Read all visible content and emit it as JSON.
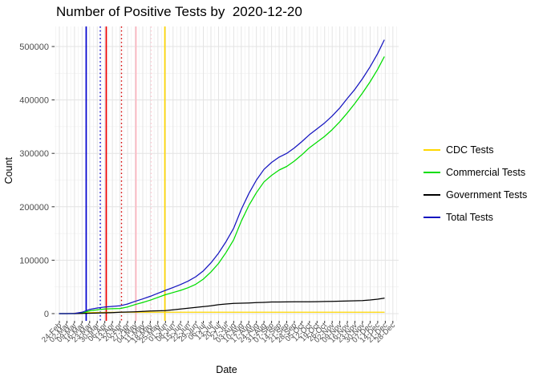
{
  "title": "Number of Positive Tests by  2020-12-20",
  "axes": {
    "x_label": "Date",
    "y_label": "Count",
    "y_ticks": [
      "0",
      "100000",
      "200000",
      "300000",
      "400000",
      "500000"
    ]
  },
  "legend": {
    "position": "right",
    "items": [
      {
        "label": "CDC Tests",
        "color": "#FFD700"
      },
      {
        "label": "Commercial Tests",
        "color": "#00DD00"
      },
      {
        "label": "Government Tests",
        "color": "#000000"
      },
      {
        "label": "Total Tests",
        "color": "#1515C0"
      }
    ]
  },
  "chart_data": {
    "type": "line",
    "title": "Number of Positive Tests by  2020-12-20",
    "xlabel": "Date",
    "ylabel": "Count",
    "ylim": [
      0,
      540000
    ],
    "grid": true,
    "legend_position": "right",
    "categories": [
      "24-Feb",
      "02-Mar",
      "09-Mar",
      "16-Mar",
      "23-Mar",
      "30-Mar",
      "06-Apr",
      "13-Apr",
      "20-Apr",
      "27-Apr",
      "04-May",
      "11-May",
      "18-May",
      "25-May",
      "01-Jun",
      "08-Jun",
      "15-Jun",
      "22-Jun",
      "29-Jun",
      "06-Jul",
      "13-Jul",
      "20-Jul",
      "27-Jul",
      "03-Aug",
      "10-Aug",
      "17-Aug",
      "24-Aug",
      "31-Aug",
      "07-Sep",
      "14-Sep",
      "21-Sep",
      "28-Sep",
      "05-Oct",
      "12-Oct",
      "19-Oct",
      "26-Oct",
      "02-Nov",
      "09-Nov",
      "16-Nov",
      "23-Nov",
      "30-Nov",
      "07-Dec",
      "14-Dec",
      "21-Dec",
      "28-Dec"
    ],
    "x_weeks": [
      0,
      1,
      2,
      3,
      4,
      5,
      6,
      7,
      8,
      9,
      10,
      11,
      12,
      13,
      14,
      15,
      16,
      17,
      18,
      19,
      20,
      21,
      22,
      23,
      24,
      25,
      26,
      27,
      28,
      29,
      30,
      31,
      32,
      33,
      34,
      35,
      36,
      37,
      38,
      39,
      40,
      41,
      42,
      42.86
    ],
    "series": [
      {
        "name": "CDC Tests",
        "color": "#FFD700",
        "values": [
          0,
          0,
          800,
          1500,
          2000,
          2200,
          2300,
          2400,
          2400,
          2500,
          2500,
          2500,
          2500,
          2500,
          2500,
          2500,
          2500,
          2500,
          2500,
          2500,
          2500,
          2500,
          2500,
          2500,
          2500,
          2500,
          2500,
          2500,
          2500,
          2500,
          2500,
          2500,
          2500,
          2500,
          2500,
          2500,
          2500,
          2500,
          2500,
          2500,
          2500,
          2500,
          2500,
          2500
        ]
      },
      {
        "name": "Commercial Tests",
        "color": "#00DD00",
        "values": [
          0,
          0,
          0,
          700,
          5200,
          7100,
          8700,
          9100,
          9600,
          12500,
          17000,
          20800,
          25200,
          30300,
          35400,
          39500,
          43500,
          48500,
          54900,
          64500,
          78000,
          93800,
          114500,
          138500,
          173000,
          202500,
          226500,
          246500,
          258800,
          268700,
          275600,
          285500,
          297500,
          310500,
          321200,
          331900,
          344500,
          359200,
          375900,
          393500,
          413000,
          434000,
          457500,
          480700
        ]
      },
      {
        "name": "Government Tests",
        "color": "#000000",
        "values": [
          0,
          0,
          0,
          300,
          800,
          1200,
          1500,
          2000,
          2500,
          3000,
          3500,
          4200,
          4800,
          5200,
          5600,
          7000,
          8500,
          10000,
          11600,
          13000,
          14500,
          16700,
          18000,
          19000,
          19500,
          20000,
          20500,
          21000,
          21700,
          21800,
          21900,
          22000,
          22000,
          22000,
          22300,
          22600,
          23000,
          23300,
          23600,
          24000,
          24500,
          25500,
          27000,
          28800
        ]
      },
      {
        "name": "Total Tests",
        "color": "#1515C0",
        "values": [
          0,
          0,
          500,
          2500,
          8000,
          10500,
          12500,
          13500,
          14500,
          18000,
          23000,
          27500,
          32500,
          38000,
          43500,
          49000,
          54500,
          61000,
          69000,
          80000,
          95000,
          113000,
          135000,
          160000,
          195000,
          225000,
          250000,
          270000,
          283000,
          293000,
          300000,
          310000,
          322000,
          335000,
          346000,
          357000,
          370000,
          385000,
          403000,
          420000,
          440000,
          462000,
          487000,
          512000
        ]
      }
    ],
    "vlines": [
      {
        "week": 3.54,
        "color": "#0000CD",
        "dashed": false
      },
      {
        "week": 5.4,
        "color": "#0000CD",
        "dashed": true
      },
      {
        "week": 6.19,
        "color": "#EE0000",
        "dashed": false
      },
      {
        "week": 8.2,
        "color": "#D40000",
        "dashed": true
      },
      {
        "week": 10.11,
        "color": "#FFB6C1",
        "dashed": false
      },
      {
        "week": 12.12,
        "color": "#FFCCD5",
        "dashed": true
      },
      {
        "week": 13.92,
        "color": "#FFD700",
        "dashed": false
      }
    ]
  }
}
